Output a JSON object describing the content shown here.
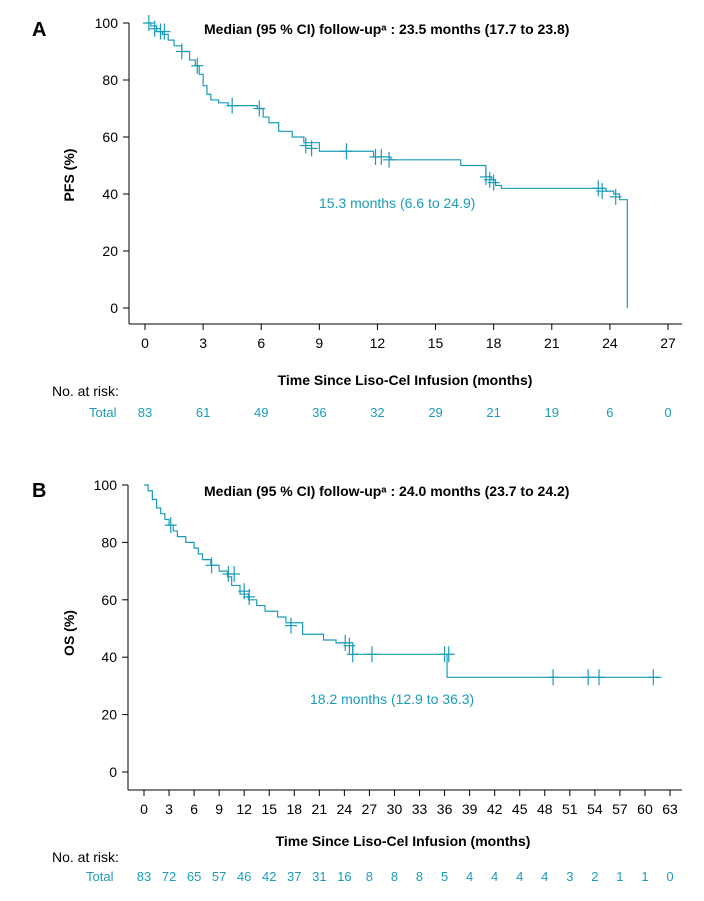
{
  "chart_data": [
    {
      "type": "line",
      "panel_label": "A",
      "title": "Median (95 % CI) follow-upᵃ : 23.5 months (17.7 to 23.8)",
      "ylabel": "PFS (%)",
      "xlabel": "Time Since Liso-Cel Infusion (months)",
      "xlim": [
        0,
        27
      ],
      "ylim": [
        0,
        100
      ],
      "xticks": [
        "0",
        "3",
        "6",
        "9",
        "12",
        "15",
        "18",
        "21",
        "24",
        "27"
      ],
      "yticks": [
        "0",
        "20",
        "40",
        "60",
        "80",
        "100"
      ],
      "median_annotation": "15.3 months (6.6 to 24.9)",
      "risk_header": "No. at risk:",
      "risk_label": "Total",
      "risk_times": [
        0,
        3,
        6,
        9,
        12,
        15,
        18,
        21,
        24,
        27
      ],
      "risk_values": [
        "83",
        "61",
        "49",
        "36",
        "32",
        "29",
        "21",
        "19",
        "6",
        "0"
      ],
      "series": [
        {
          "color": "#1a9cb8",
          "x": [
            0,
            0.3,
            0.6,
            0.9,
            1.2,
            1.5,
            1.9,
            2.3,
            2.6,
            2.8,
            3.0,
            3.2,
            3.4,
            3.8,
            4.3,
            5.2,
            5.8,
            6.1,
            6.4,
            6.9,
            7.6,
            8.2,
            9.0,
            10.5,
            11.8,
            12.7,
            16.3,
            17.6,
            17.9,
            18.1,
            18.4,
            23.3,
            23.8,
            24.2,
            24.5,
            24.9
          ],
          "y": [
            100,
            99,
            97,
            96,
            94,
            92,
            90,
            87,
            85,
            82,
            78,
            75,
            73,
            72,
            71,
            71,
            70,
            67,
            65,
            62,
            60,
            58,
            55,
            55,
            53,
            52,
            50,
            46,
            45,
            43,
            42,
            42,
            41,
            40,
            38,
            0
          ]
        }
      ],
      "censor_x": [
        0.2,
        0.5,
        0.8,
        1.0,
        1.9,
        2.7,
        4.5,
        5.9,
        8.3,
        8.6,
        10.4,
        11.9,
        12.2,
        12.6,
        17.6,
        17.8,
        18.0,
        23.4,
        23.6,
        24.3
      ],
      "censor_y": [
        100,
        98,
        97,
        97,
        90,
        85,
        71,
        70,
        57,
        56,
        55,
        53,
        53,
        52,
        46,
        45,
        44,
        42,
        41,
        39
      ]
    },
    {
      "type": "line",
      "panel_label": "B",
      "title": "Median (95 % CI) follow-upᵃ : 24.0 months (23.7 to 24.2)",
      "ylabel": "OS (%)",
      "xlabel": "Time Since Liso-Cel Infusion (months)",
      "xlim": [
        0,
        63
      ],
      "ylim": [
        0,
        100
      ],
      "xticks": [
        "0",
        "3",
        "6",
        "9",
        "12",
        "15",
        "18",
        "21",
        "24",
        "27",
        "30",
        "33",
        "36",
        "39",
        "42",
        "45",
        "48",
        "51",
        "54",
        "57",
        "60",
        "63"
      ],
      "yticks": [
        "0",
        "20",
        "40",
        "60",
        "80",
        "100"
      ],
      "median_annotation": "18.2 months (12.9 to 36.3)",
      "risk_header": "No. at risk:",
      "risk_label": "Total",
      "risk_times": [
        0,
        3,
        6,
        9,
        12,
        15,
        18,
        21,
        24,
        27,
        30,
        33,
        36,
        39,
        42,
        45,
        48,
        51,
        54,
        57,
        60,
        63
      ],
      "risk_values": [
        "83",
        "72",
        "65",
        "57",
        "46",
        "42",
        "37",
        "31",
        "16",
        "8",
        "8",
        "8",
        "5",
        "4",
        "4",
        "4",
        "4",
        "3",
        "2",
        "1",
        "1",
        "0"
      ],
      "series": [
        {
          "color": "#1a9cb8",
          "x": [
            0,
            0.5,
            1.0,
            1.5,
            2.0,
            2.5,
            3.0,
            3.5,
            4.0,
            5.0,
            6.0,
            6.5,
            7.0,
            8.0,
            9.0,
            10.0,
            10.5,
            11.5,
            12.5,
            13.5,
            14.5,
            16.0,
            17.0,
            19.0,
            21.5,
            23.0,
            25.0,
            36.3,
            62.0
          ],
          "y": [
            100,
            98,
            95,
            92,
            90,
            88,
            86,
            84,
            82,
            80,
            78,
            76,
            74,
            72,
            70,
            68,
            65,
            62,
            60,
            58,
            56,
            54,
            52,
            48,
            46,
            45,
            41,
            33,
            33
          ]
        }
      ],
      "censor_x": [
        3.2,
        8.1,
        10.1,
        10.8,
        12.0,
        12.6,
        17.6,
        24.1,
        24.6,
        25.0,
        27.3,
        36.0,
        36.5,
        49.0,
        53.2,
        54.5,
        61.0
      ],
      "censor_y": [
        86,
        72,
        69,
        69,
        63,
        61,
        51,
        45,
        44,
        41,
        41,
        41,
        41,
        33,
        33,
        33,
        33
      ]
    }
  ]
}
